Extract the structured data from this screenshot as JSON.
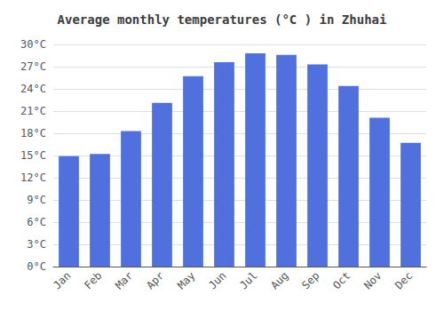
{
  "chart_data": {
    "type": "bar",
    "title": "Average monthly temperatures (°C ) in Zhuhai",
    "categories": [
      "Jan",
      "Feb",
      "Mar",
      "Apr",
      "May",
      "Jun",
      "Jul",
      "Aug",
      "Sep",
      "Oct",
      "Nov",
      "Dec"
    ],
    "values": [
      14.9,
      15.2,
      18.3,
      22.1,
      25.7,
      27.6,
      28.8,
      28.6,
      27.3,
      24.4,
      20.1,
      16.7
    ],
    "ylim": [
      0,
      30
    ],
    "yticks": [
      {
        "value": 0,
        "label": "0°C"
      },
      {
        "value": 3,
        "label": "3°C"
      },
      {
        "value": 6,
        "label": "6°C"
      },
      {
        "value": 9,
        "label": "9°C"
      },
      {
        "value": 12,
        "label": "12°C"
      },
      {
        "value": 15,
        "label": "15°C"
      },
      {
        "value": 18,
        "label": "18°C"
      },
      {
        "value": 21,
        "label": "21°C"
      },
      {
        "value": 24,
        "label": "24°C"
      },
      {
        "value": 27,
        "label": "27°C"
      },
      {
        "value": 30,
        "label": "30°C"
      }
    ],
    "grid": true
  }
}
